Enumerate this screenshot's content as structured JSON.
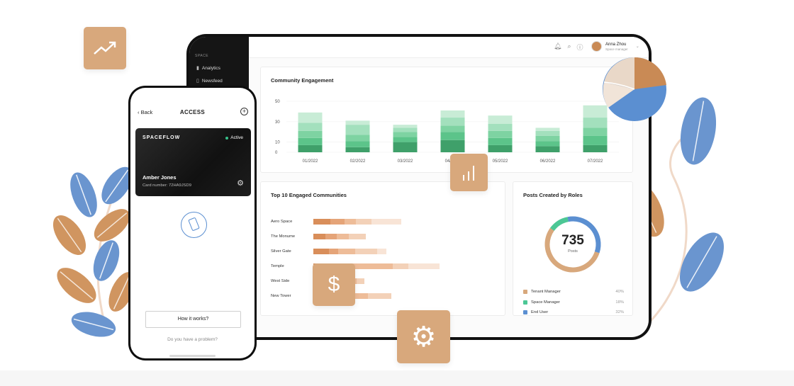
{
  "sidebar": {
    "section": "SPACE",
    "items": [
      {
        "label": "Analytics",
        "icon": "bar-chart-icon"
      },
      {
        "label": "Newsfeed",
        "icon": "document-icon"
      }
    ]
  },
  "header": {
    "icons": [
      "bell-icon",
      "search-icon",
      "help-icon"
    ],
    "user_name": "Anna Zhou",
    "user_role": "Space manager"
  },
  "engagement": {
    "title": "Community Engagement",
    "chart_data": {
      "type": "bar",
      "stacked": true,
      "categories": [
        "01/2022",
        "02/2022",
        "03/2022",
        "04/2022",
        "05/2022",
        "06/2022",
        "07/2022"
      ],
      "series": [
        {
          "values": [
            7,
            5,
            10,
            12,
            7,
            6,
            7
          ]
        },
        {
          "values": [
            7,
            6,
            5,
            8,
            7,
            5,
            9
          ]
        },
        {
          "values": [
            7,
            6,
            5,
            6,
            7,
            5,
            8
          ]
        },
        {
          "values": [
            8,
            10,
            4,
            8,
            7,
            5,
            10
          ]
        },
        {
          "values": [
            10,
            4,
            3,
            7,
            8,
            3,
            12
          ]
        }
      ],
      "yticks": [
        0,
        10,
        30,
        50
      ],
      "ylim": [
        0,
        50
      ],
      "colors": [
        "#3fa06a",
        "#5cc48a",
        "#7ed3a2",
        "#a3e0bd",
        "#c8ecd6"
      ]
    }
  },
  "top10": {
    "title": "Top 10 Engaged Communities",
    "rows": [
      {
        "label": "Aero Space",
        "values": [
          22,
          18,
          15,
          20,
          38
        ]
      },
      {
        "label": "The Monume",
        "values": [
          15,
          15,
          15,
          22,
          0
        ]
      },
      {
        "label": "Silver Gate",
        "values": [
          20,
          12,
          22,
          28,
          12
        ]
      },
      {
        "label": "Temple",
        "values": [
          22,
          20,
          60,
          20,
          40
        ]
      },
      {
        "label": "West Side",
        "values": [
          20,
          15,
          20,
          10,
          0
        ]
      },
      {
        "label": "New Tower",
        "values": [
          20,
          20,
          30,
          30,
          0
        ]
      }
    ],
    "colors": [
      "#d98e5a",
      "#e5a478",
      "#eebc98",
      "#f3d1b8",
      "#f8e4d6"
    ]
  },
  "posts": {
    "title": "Posts Created by Roles",
    "total": "735",
    "total_label": "Posts",
    "legend": [
      {
        "label": "Tenant Manager",
        "pct": "40%",
        "color": "#d8a87c"
      },
      {
        "label": "Space Manager",
        "pct": "18%",
        "color": "#4cc795"
      },
      {
        "label": "End User",
        "pct": "32%",
        "color": "#5b8fd1"
      }
    ]
  },
  "phone": {
    "back": "Back",
    "title": "ACCESS",
    "brand": "SPACEFLOW",
    "status": "Active",
    "card_name": "Amber Jones",
    "card_number": "Card number: 72HA9JSD9",
    "how_it_works": "How it works?",
    "problem": "Do you have a problem?"
  },
  "tiles": [
    "trend-up-icon",
    "bar-chart-icon",
    "dollar-icon",
    "gear-icon"
  ]
}
